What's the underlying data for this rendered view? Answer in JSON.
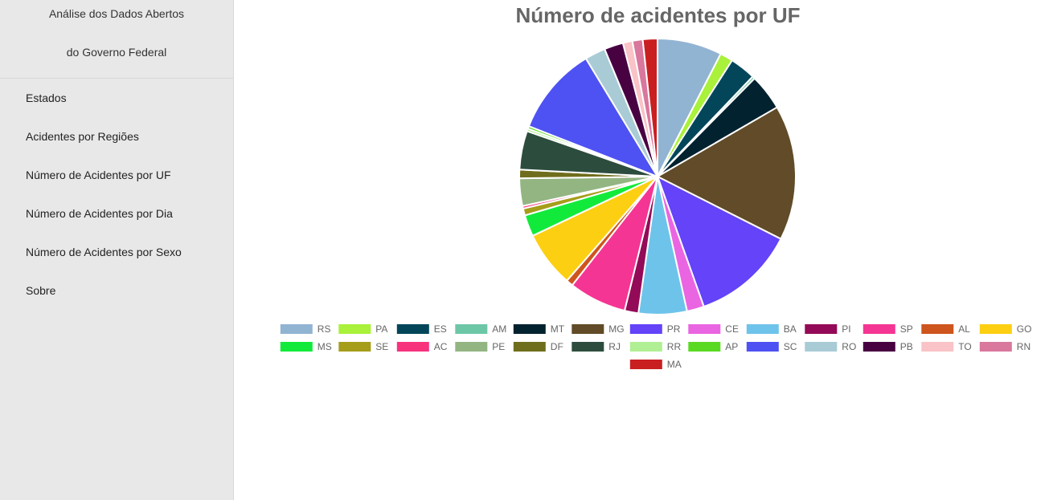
{
  "sidebar": {
    "brand_line1": "Análise dos Dados Abertos",
    "brand_line2": "do Governo Federal",
    "items": [
      {
        "label": "Estados"
      },
      {
        "label": "Acidentes por Regiões"
      },
      {
        "label": "Número de Acidentes por UF"
      },
      {
        "label": "Número de Acidentes por Dia"
      },
      {
        "label": "Número de Acidentes por Sexo"
      },
      {
        "label": "Sobre"
      }
    ]
  },
  "chart_data": {
    "type": "pie",
    "title": "Número de acidentes por UF",
    "legend_position": "bottom",
    "categories": [
      "RS",
      "PA",
      "ES",
      "AM",
      "MT",
      "MG",
      "PR",
      "CE",
      "BA",
      "PI",
      "SP",
      "AL",
      "GO",
      "MS",
      "SE",
      "AC",
      "PE",
      "DF",
      "RJ",
      "RR",
      "AP",
      "SC",
      "RO",
      "PB",
      "TO",
      "RN",
      "MA"
    ],
    "values": [
      7.5,
      1.5,
      3.0,
      0.3,
      4.2,
      15.7,
      12.0,
      2.0,
      5.6,
      1.6,
      6.7,
      0.8,
      6.5,
      2.5,
      0.8,
      0.3,
      3.2,
      1.0,
      4.5,
      0.3,
      0.3,
      10.3,
      2.4,
      2.2,
      1.1,
      1.2,
      1.7
    ],
    "colors": [
      "#92b4d3",
      "#a9f13a",
      "#03465a",
      "#6cc7a6",
      "#03222f",
      "#614b28",
      "#6443f9",
      "#ea65e1",
      "#6ec3ea",
      "#930a58",
      "#f53593",
      "#ce551d",
      "#fccf12",
      "#12ea3b",
      "#a69d1a",
      "#f7337e",
      "#93b582",
      "#6f6e1c",
      "#2c4d3d",
      "#b0ef93",
      "#5ad923",
      "#4e52f2",
      "#a9cbd6",
      "#480242",
      "#f9c3c7",
      "#d9779d",
      "#c91f21"
    ]
  }
}
